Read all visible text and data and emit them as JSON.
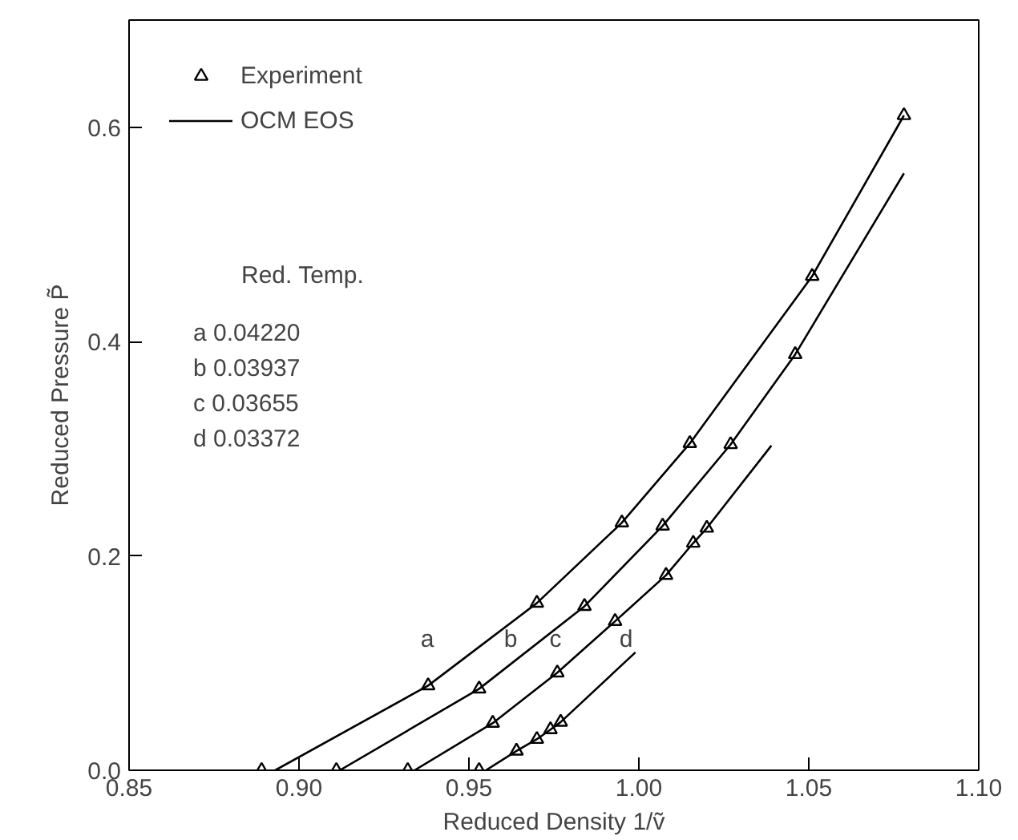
{
  "chart_data": {
    "type": "scatter",
    "xlabel": "Reduced Density 1/ṽ",
    "ylabel": "Reduced Pressure P̃",
    "xlim": [
      0.85,
      1.1
    ],
    "ylim": [
      0,
      0.7
    ],
    "xticks": [
      0.85,
      {
        "value": 0.9,
        "label": "0.90"
      },
      0.95,
      {
        "value": 1.0,
        "label": "1.00"
      },
      1.05,
      {
        "value": 1.1,
        "label": "1.10"
      }
    ],
    "yticks": [
      {
        "value": 0,
        "label": "0.0"
      },
      0.2,
      0.4,
      0.6
    ],
    "grid": false,
    "legend": "top left",
    "series": [
      {
        "name": "Experiment",
        "marker": "triangle",
        "color": "#000000",
        "x": [
          0.889,
          0.938,
          0.97,
          0.995,
          1.015,
          1.051,
          1.078,
          0.911,
          0.953,
          0.984,
          1.007,
          1.027,
          1.046,
          0.932,
          0.957,
          0.976,
          0.993,
          1.008,
          1.016,
          1.02,
          0.953,
          0.964,
          0.97,
          0.974,
          0.977
        ],
        "values": [
          0,
          0.079,
          0.156,
          0.231,
          0.305,
          0.461,
          0.611,
          0,
          0.076,
          0.153,
          0.228,
          0.304,
          0.388,
          0,
          0.044,
          0.091,
          0.139,
          0.182,
          0.212,
          0.226,
          0,
          0.018,
          0.029,
          0.038,
          0.045
        ]
      },
      {
        "name": "OCM EOS",
        "type": "line",
        "color": "#000000",
        "line_style": "solid",
        "x": [
          0.893,
          0.938,
          0.97,
          0.995,
          1.015,
          1.051,
          1.078,
          null,
          0.912,
          0.953,
          0.984,
          1.007,
          1.027,
          1.046,
          1.078,
          null,
          0.934,
          0.957,
          0.976,
          0.993,
          1.008,
          1.016,
          1.02,
          1.039,
          null,
          0.955,
          0.964,
          0.97,
          0.974,
          0.977,
          0.999
        ],
        "values": [
          0,
          0.079,
          0.156,
          0.231,
          0.305,
          0.461,
          0.611,
          null,
          0,
          0.076,
          0.153,
          0.228,
          0.304,
          0.388,
          0.557,
          null,
          0,
          0.044,
          0.091,
          0.139,
          0.182,
          0.212,
          0.226,
          0.303,
          null,
          0,
          0.018,
          0.029,
          0.038,
          0.045,
          0.11
        ]
      }
    ],
    "annotations": [
      "a",
      "b",
      "c",
      "d",
      "Red. Temp.",
      "a 0.04220",
      "b 0.03937",
      "c 0.03655",
      "d 0.03372"
    ]
  }
}
